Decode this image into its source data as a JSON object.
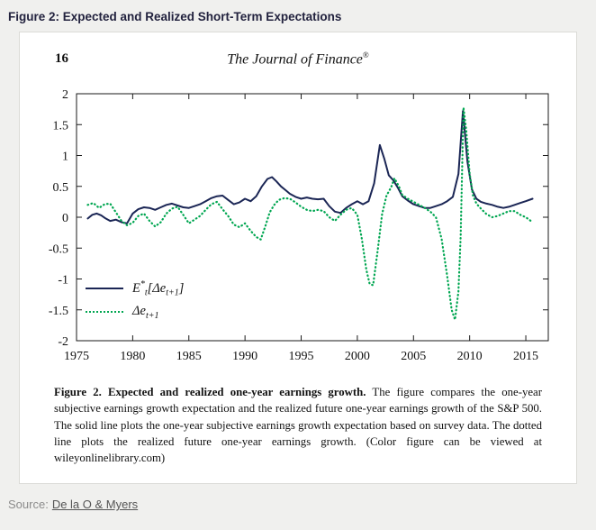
{
  "page": {
    "title": "Figure 2: Expected and Realized Short-Term Expectations",
    "source_label": "Source:",
    "source_link": "De la O & Myers"
  },
  "paper": {
    "page_number": "16",
    "journal_name": "The Journal of Finance",
    "journal_mark": "®",
    "caption_bold": "Figure 2. Expected and realized one-year earnings growth.",
    "caption_rest": " The figure compares the one-year subjective earnings growth expectation and the realized future one-year earnings growth of the S&P 500. The solid line plots the one-year subjective earnings growth expectation based on survey data. The dotted line plots the realized future one-year earnings growth. (Color figure can be viewed at wileyonlinelibrary.com)"
  },
  "chart_data": {
    "type": "line",
    "title": "",
    "xlabel": "",
    "ylabel": "",
    "x_range": [
      1975,
      2017
    ],
    "y_range": [
      -2,
      2
    ],
    "x_ticks": [
      1975,
      1980,
      1985,
      1990,
      1995,
      2000,
      2005,
      2010,
      2015
    ],
    "y_ticks": [
      -2,
      -1.5,
      -1,
      -0.5,
      0,
      0.5,
      1,
      1.5,
      2
    ],
    "grid": false,
    "legend_position": "lower-left",
    "legend": [
      {
        "style": "solid",
        "color": "#1b2655",
        "pre": "E",
        "sup": "*",
        "sub": "t",
        "mid": "[Δe",
        "sub2": "t+1",
        "post": "]"
      },
      {
        "style": "dotted",
        "color": "#00a651",
        "pre": "Δe",
        "sub": "t+1"
      }
    ],
    "series": [
      {
        "name": "expected",
        "label": "E*t[Δe t+1] — subjective one-year earnings growth expectation",
        "color": "#1b2655",
        "style": "solid",
        "points": [
          [
            1976.0,
            -0.02
          ],
          [
            1976.4,
            0.04
          ],
          [
            1976.8,
            0.06
          ],
          [
            1977.2,
            0.03
          ],
          [
            1977.6,
            -0.02
          ],
          [
            1978.0,
            -0.06
          ],
          [
            1978.5,
            -0.04
          ],
          [
            1979.0,
            -0.08
          ],
          [
            1979.5,
            -0.1
          ],
          [
            1980.0,
            0.06
          ],
          [
            1980.5,
            0.13
          ],
          [
            1981.0,
            0.16
          ],
          [
            1981.5,
            0.15
          ],
          [
            1982.0,
            0.12
          ],
          [
            1982.5,
            0.16
          ],
          [
            1983.0,
            0.2
          ],
          [
            1983.5,
            0.22
          ],
          [
            1984.0,
            0.19
          ],
          [
            1984.5,
            0.16
          ],
          [
            1985.0,
            0.15
          ],
          [
            1985.5,
            0.18
          ],
          [
            1986.0,
            0.21
          ],
          [
            1986.5,
            0.26
          ],
          [
            1987.0,
            0.31
          ],
          [
            1987.5,
            0.34
          ],
          [
            1988.0,
            0.35
          ],
          [
            1988.5,
            0.28
          ],
          [
            1989.0,
            0.21
          ],
          [
            1989.5,
            0.24
          ],
          [
            1990.0,
            0.3
          ],
          [
            1990.5,
            0.26
          ],
          [
            1991.0,
            0.34
          ],
          [
            1991.5,
            0.5
          ],
          [
            1992.0,
            0.62
          ],
          [
            1992.4,
            0.65
          ],
          [
            1992.8,
            0.58
          ],
          [
            1993.2,
            0.5
          ],
          [
            1993.6,
            0.44
          ],
          [
            1994.0,
            0.38
          ],
          [
            1994.5,
            0.33
          ],
          [
            1995.0,
            0.3
          ],
          [
            1995.5,
            0.32
          ],
          [
            1996.0,
            0.3
          ],
          [
            1996.5,
            0.29
          ],
          [
            1997.0,
            0.3
          ],
          [
            1997.5,
            0.18
          ],
          [
            1998.0,
            0.09
          ],
          [
            1998.5,
            0.07
          ],
          [
            1999.0,
            0.15
          ],
          [
            1999.5,
            0.21
          ],
          [
            2000.0,
            0.26
          ],
          [
            2000.5,
            0.21
          ],
          [
            2001.0,
            0.26
          ],
          [
            2001.5,
            0.55
          ],
          [
            2002.0,
            1.17
          ],
          [
            2002.4,
            0.95
          ],
          [
            2002.8,
            0.68
          ],
          [
            2003.2,
            0.6
          ],
          [
            2003.6,
            0.48
          ],
          [
            2004.0,
            0.34
          ],
          [
            2004.5,
            0.27
          ],
          [
            2005.0,
            0.21
          ],
          [
            2005.5,
            0.18
          ],
          [
            2006.0,
            0.15
          ],
          [
            2006.5,
            0.15
          ],
          [
            2007.0,
            0.18
          ],
          [
            2007.5,
            0.21
          ],
          [
            2008.0,
            0.26
          ],
          [
            2008.5,
            0.33
          ],
          [
            2009.0,
            0.7
          ],
          [
            2009.4,
            1.72
          ],
          [
            2009.8,
            0.9
          ],
          [
            2010.2,
            0.45
          ],
          [
            2010.6,
            0.3
          ],
          [
            2011.0,
            0.25
          ],
          [
            2011.5,
            0.22
          ],
          [
            2012.0,
            0.2
          ],
          [
            2012.5,
            0.17
          ],
          [
            2013.0,
            0.15
          ],
          [
            2013.5,
            0.17
          ],
          [
            2014.0,
            0.2
          ],
          [
            2014.5,
            0.23
          ],
          [
            2015.0,
            0.26
          ],
          [
            2015.6,
            0.3
          ]
        ]
      },
      {
        "name": "realized",
        "label": "Δe t+1 — realized future one-year earnings growth",
        "color": "#00a651",
        "style": "dotted",
        "points": [
          [
            1976.0,
            0.2
          ],
          [
            1976.5,
            0.23
          ],
          [
            1977.0,
            0.15
          ],
          [
            1977.5,
            0.21
          ],
          [
            1978.0,
            0.22
          ],
          [
            1978.5,
            0.08
          ],
          [
            1979.0,
            -0.06
          ],
          [
            1979.5,
            -0.13
          ],
          [
            1980.0,
            -0.09
          ],
          [
            1980.5,
            0.02
          ],
          [
            1981.0,
            0.06
          ],
          [
            1981.5,
            -0.06
          ],
          [
            1982.0,
            -0.15
          ],
          [
            1982.5,
            -0.08
          ],
          [
            1983.0,
            0.06
          ],
          [
            1983.5,
            0.14
          ],
          [
            1984.0,
            0.17
          ],
          [
            1984.5,
            0.04
          ],
          [
            1985.0,
            -0.1
          ],
          [
            1985.5,
            -0.04
          ],
          [
            1986.0,
            0.02
          ],
          [
            1986.5,
            0.12
          ],
          [
            1987.0,
            0.21
          ],
          [
            1987.5,
            0.25
          ],
          [
            1988.0,
            0.13
          ],
          [
            1988.5,
            0.02
          ],
          [
            1989.0,
            -0.12
          ],
          [
            1989.5,
            -0.16
          ],
          [
            1990.0,
            -0.1
          ],
          [
            1990.5,
            -0.22
          ],
          [
            1991.0,
            -0.32
          ],
          [
            1991.4,
            -0.36
          ],
          [
            1991.8,
            -0.15
          ],
          [
            1992.2,
            0.08
          ],
          [
            1992.6,
            0.2
          ],
          [
            1993.0,
            0.28
          ],
          [
            1993.5,
            0.31
          ],
          [
            1994.0,
            0.3
          ],
          [
            1994.5,
            0.24
          ],
          [
            1995.0,
            0.17
          ],
          [
            1995.5,
            0.12
          ],
          [
            1996.0,
            0.1
          ],
          [
            1996.5,
            0.12
          ],
          [
            1997.0,
            0.1
          ],
          [
            1997.5,
            0.0
          ],
          [
            1998.0,
            -0.06
          ],
          [
            1998.5,
            0.04
          ],
          [
            1999.0,
            0.12
          ],
          [
            1999.5,
            0.15
          ],
          [
            2000.0,
            0.04
          ],
          [
            2000.4,
            -0.35
          ],
          [
            2000.8,
            -0.85
          ],
          [
            2001.1,
            -1.08
          ],
          [
            2001.4,
            -1.1
          ],
          [
            2001.8,
            -0.55
          ],
          [
            2002.2,
            0.05
          ],
          [
            2002.6,
            0.35
          ],
          [
            2003.0,
            0.48
          ],
          [
            2003.3,
            0.63
          ],
          [
            2003.7,
            0.5
          ],
          [
            2004.0,
            0.36
          ],
          [
            2004.5,
            0.3
          ],
          [
            2005.0,
            0.25
          ],
          [
            2005.5,
            0.2
          ],
          [
            2006.0,
            0.15
          ],
          [
            2006.5,
            0.09
          ],
          [
            2007.0,
            0.0
          ],
          [
            2007.5,
            -0.35
          ],
          [
            2008.0,
            -0.95
          ],
          [
            2008.4,
            -1.5
          ],
          [
            2008.7,
            -1.66
          ],
          [
            2009.0,
            -1.2
          ],
          [
            2009.2,
            -0.3
          ],
          [
            2009.45,
            1.78
          ],
          [
            2009.7,
            1.4
          ],
          [
            2010.0,
            0.7
          ],
          [
            2010.3,
            0.35
          ],
          [
            2010.6,
            0.22
          ],
          [
            2011.0,
            0.14
          ],
          [
            2011.5,
            0.05
          ],
          [
            2012.0,
            0.0
          ],
          [
            2012.5,
            0.02
          ],
          [
            2013.0,
            0.06
          ],
          [
            2013.5,
            0.1
          ],
          [
            2014.0,
            0.1
          ],
          [
            2014.5,
            0.04
          ],
          [
            2015.0,
            0.0
          ],
          [
            2015.6,
            -0.08
          ]
        ]
      }
    ]
  }
}
